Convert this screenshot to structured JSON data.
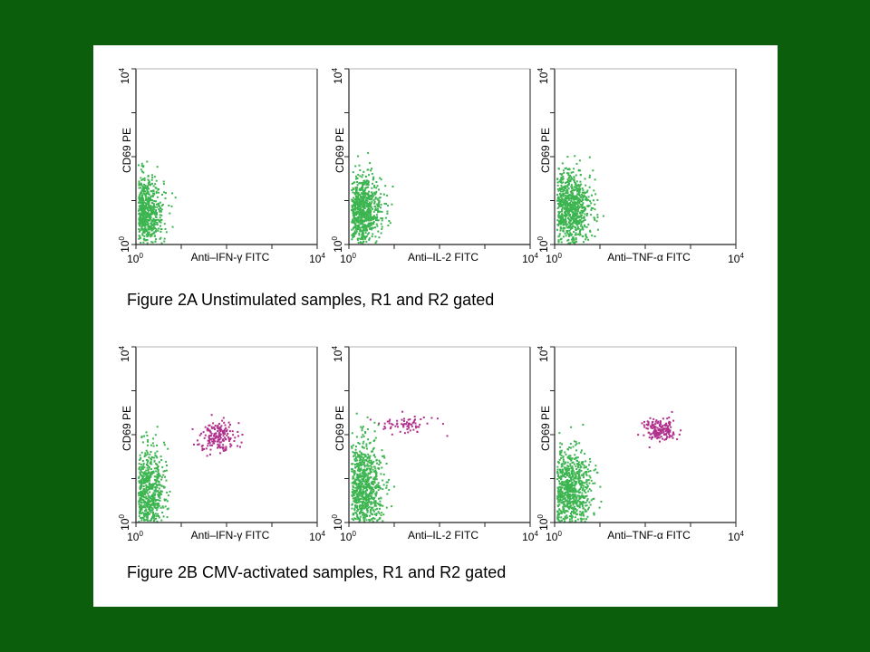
{
  "colors": {
    "background": "#0b5e0b",
    "panel": "#ffffff",
    "responder_green": "#3cb550",
    "responder_magenta": "#b0308c",
    "axis": "#222222"
  },
  "axis_text": {
    "y_title": "CD69 PE",
    "tick_base": "10",
    "tick_low_exp": "0",
    "tick_high_exp": "4"
  },
  "figures": [
    {
      "caption": "Figure 2A Unstimulated samples, R1 and R2 gated",
      "panels": [
        {
          "x_title": "Anti–IFN-γ FITC"
        },
        {
          "x_title": "Anti–IL-2 FITC"
        },
        {
          "x_title": "Anti–TNF-α FITC"
        }
      ]
    },
    {
      "caption": "Figure 2B CMV-activated samples, R1 and R2 gated",
      "panels": [
        {
          "x_title": "Anti–IFN-γ FITC"
        },
        {
          "x_title": "Anti–IL-2 FITC"
        },
        {
          "x_title": "Anti–TNF-α FITC"
        }
      ]
    }
  ],
  "chart_data": [
    {
      "type": "scatter",
      "figure": "2A",
      "panel": 1,
      "xlabel": "Anti–IFN-γ FITC",
      "ylabel": "CD69 PE",
      "xscale": "log",
      "yscale": "log",
      "xlim": [
        "10^0",
        "10^4"
      ],
      "ylim": [
        "10^0",
        "10^4"
      ],
      "clusters": [
        {
          "population": "green",
          "x": 1.4,
          "y": 6.0,
          "spread_x_decades": 0.22,
          "spread_y_decades": 0.4,
          "density": "high"
        }
      ]
    },
    {
      "type": "scatter",
      "figure": "2A",
      "panel": 2,
      "xlabel": "Anti–IL-2 FITC",
      "ylabel": "CD69 PE",
      "xscale": "log",
      "yscale": "log",
      "xlim": [
        "10^0",
        "10^4"
      ],
      "ylim": [
        "10^0",
        "10^4"
      ],
      "clusters": [
        {
          "population": "green",
          "x": 1.8,
          "y": 6.0,
          "spread_x_decades": 0.22,
          "spread_y_decades": 0.4,
          "density": "high"
        }
      ]
    },
    {
      "type": "scatter",
      "figure": "2A",
      "panel": 3,
      "xlabel": "Anti–TNF-α FITC",
      "ylabel": "CD69 PE",
      "xscale": "log",
      "yscale": "log",
      "xlim": [
        "10^0",
        "10^4"
      ],
      "ylim": [
        "10^0",
        "10^4"
      ],
      "clusters": [
        {
          "population": "green",
          "x": 2.0,
          "y": 7.0,
          "spread_x_decades": 0.24,
          "spread_y_decades": 0.42,
          "density": "high"
        }
      ]
    },
    {
      "type": "scatter",
      "figure": "2B",
      "panel": 1,
      "xlabel": "Anti–IFN-γ FITC",
      "ylabel": "CD69 PE",
      "xscale": "log",
      "yscale": "log",
      "xlim": [
        "10^0",
        "10^4"
      ],
      "ylim": [
        "10^0",
        "10^4"
      ],
      "clusters": [
        {
          "population": "green",
          "x": 1.5,
          "y": 5.0,
          "spread_x_decades": 0.22,
          "spread_y_decades": 0.5,
          "density": "high"
        },
        {
          "population": "magenta",
          "x": 63,
          "y": 100,
          "spread_x_decades": 0.2,
          "spread_y_decades": 0.17,
          "density": "medium"
        }
      ]
    },
    {
      "type": "scatter",
      "figure": "2B",
      "panel": 2,
      "xlabel": "Anti–IL-2 FITC",
      "ylabel": "CD69 PE",
      "xscale": "log",
      "yscale": "log",
      "xlim": [
        "10^0",
        "10^4"
      ],
      "ylim": [
        "10^0",
        "10^4"
      ],
      "clusters": [
        {
          "population": "green",
          "x": 2.0,
          "y": 6.0,
          "spread_x_decades": 0.22,
          "spread_y_decades": 0.55,
          "density": "high"
        },
        {
          "population": "magenta",
          "x": 16,
          "y": 180,
          "spread_x_decades": 0.3,
          "spread_y_decades": 0.1,
          "density": "low"
        }
      ]
    },
    {
      "type": "scatter",
      "figure": "2B",
      "panel": 3,
      "xlabel": "Anti–TNF-α FITC",
      "ylabel": "CD69 PE",
      "xscale": "log",
      "yscale": "log",
      "xlim": [
        "10^0",
        "10^4"
      ],
      "ylim": [
        "10^0",
        "10^4"
      ],
      "clusters": [
        {
          "population": "green",
          "x": 2.0,
          "y": 5.0,
          "spread_x_decades": 0.24,
          "spread_y_decades": 0.5,
          "density": "high"
        },
        {
          "population": "magenta",
          "x": 200,
          "y": 130,
          "spread_x_decades": 0.18,
          "spread_y_decades": 0.12,
          "density": "medium"
        }
      ]
    }
  ]
}
